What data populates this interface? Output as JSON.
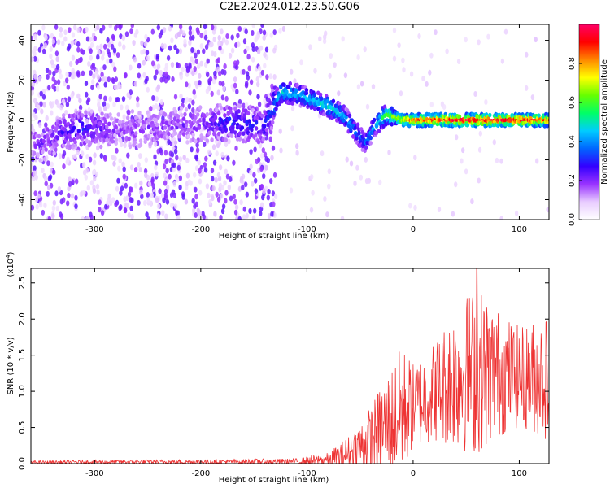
{
  "title": "C2E2.2024.012.23.50.G06",
  "chart_data": [
    {
      "type": "heatmap",
      "xlabel": "Height of straight line (km)",
      "ylabel": "Frequency (Hz)",
      "xlim": [
        -360,
        128
      ],
      "ylim": [
        -50,
        48
      ],
      "x_ticks": [
        -300,
        -200,
        -100,
        0,
        100
      ],
      "y_ticks": [
        -40,
        -20,
        0,
        20,
        40
      ],
      "colorbar": {
        "label": "Normalized spectral amplitude",
        "range": [
          0,
          1
        ],
        "ticks": [
          0.0,
          0.2,
          0.4,
          0.6,
          0.8
        ],
        "colormap": [
          "#ffffff",
          "#e8ccff",
          "#9933ff",
          "#3300ff",
          "#0066ff",
          "#00ccff",
          "#00ff66",
          "#66ff00",
          "#ffff00",
          "#ff8800",
          "#ff0000",
          "#ff0066"
        ]
      },
      "ridge": [
        {
          "x": -350,
          "y": -12,
          "a": 0.2
        },
        {
          "x": -330,
          "y": -6,
          "a": 0.25
        },
        {
          "x": -310,
          "y": -4,
          "a": 0.3
        },
        {
          "x": -280,
          "y": -5,
          "a": 0.18
        },
        {
          "x": -240,
          "y": -4,
          "a": 0.18
        },
        {
          "x": -195,
          "y": -2,
          "a": 0.2
        },
        {
          "x": -175,
          "y": -1,
          "a": 0.3
        },
        {
          "x": -160,
          "y": -2,
          "a": 0.3
        },
        {
          "x": -140,
          "y": -3,
          "a": 0.28
        },
        {
          "x": -125,
          "y": 14,
          "a": 0.5
        },
        {
          "x": -110,
          "y": 13,
          "a": 0.45
        },
        {
          "x": -95,
          "y": 10,
          "a": 0.45
        },
        {
          "x": -80,
          "y": 7,
          "a": 0.5
        },
        {
          "x": -65,
          "y": 2,
          "a": 0.45
        },
        {
          "x": -55,
          "y": -5,
          "a": 0.4
        },
        {
          "x": -45,
          "y": -12,
          "a": 0.35
        },
        {
          "x": -35,
          "y": -2,
          "a": 0.45
        },
        {
          "x": -25,
          "y": 3,
          "a": 0.6
        },
        {
          "x": -10,
          "y": 0,
          "a": 0.75
        },
        {
          "x": 0,
          "y": 0,
          "a": 0.85
        },
        {
          "x": 20,
          "y": 0,
          "a": 0.9
        },
        {
          "x": 40,
          "y": 0,
          "a": 0.95
        },
        {
          "x": 60,
          "y": 0,
          "a": 0.95
        },
        {
          "x": 80,
          "y": 0,
          "a": 0.95
        },
        {
          "x": 100,
          "y": 0,
          "a": 0.95
        },
        {
          "x": 125,
          "y": 0,
          "a": 0.85
        }
      ]
    },
    {
      "type": "line",
      "xlabel": "Height of straight line (km)",
      "ylabel": "SNR (10 * v/v)",
      "y_multiplier_label": "(x10",
      "y_multiplier_exp": "4",
      "xlim": [
        -360,
        128
      ],
      "ylim": [
        0,
        2.7
      ],
      "x_ticks": [
        -300,
        -200,
        -100,
        0,
        100
      ],
      "y_ticks": [
        0.0,
        0.5,
        1.0,
        1.5,
        2.0,
        2.5
      ],
      "color": "#ee3333",
      "envelope": [
        {
          "x": -360,
          "base": 0.02,
          "amp": 0.02
        },
        {
          "x": -110,
          "base": 0.03,
          "amp": 0.04
        },
        {
          "x": -80,
          "base": 0.05,
          "amp": 0.1
        },
        {
          "x": -60,
          "base": 0.15,
          "amp": 0.25
        },
        {
          "x": -40,
          "base": 0.3,
          "amp": 0.5
        },
        {
          "x": -25,
          "base": 0.55,
          "amp": 0.7
        },
        {
          "x": -10,
          "base": 0.75,
          "amp": 0.9
        },
        {
          "x": 0,
          "base": 0.8,
          "amp": 0.6
        },
        {
          "x": 20,
          "base": 1.0,
          "amp": 0.7
        },
        {
          "x": 40,
          "base": 1.2,
          "amp": 1.0
        },
        {
          "x": 60,
          "base": 1.3,
          "amp": 1.2
        },
        {
          "x": 80,
          "base": 1.25,
          "amp": 0.9
        },
        {
          "x": 100,
          "base": 1.2,
          "amp": 0.7
        },
        {
          "x": 128,
          "base": 1.2,
          "amp": 0.9
        }
      ],
      "peak": {
        "x": 60,
        "y": 2.7
      }
    }
  ]
}
